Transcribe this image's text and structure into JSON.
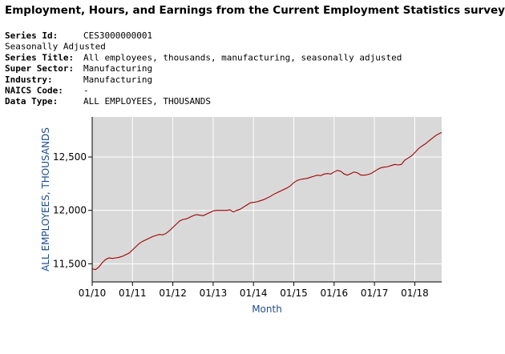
{
  "header": {
    "title": "Employment, Hours, and Earnings from the Current Employment Statistics survey (National)",
    "details": [
      {
        "label": "Series Id:",
        "value": "CES3000000001"
      },
      {
        "value": "Seasonally Adjusted"
      },
      {
        "label": "Series Title:",
        "value": "All employees, thousands, manufacturing, seasonally adjusted"
      },
      {
        "label": "Super Sector:",
        "value": "Manufacturing"
      },
      {
        "label": "Industry:",
        "value": "Manufacturing"
      },
      {
        "label": "NAICS Code:",
        "value": "-"
      },
      {
        "label": "Data Type:",
        "value": "ALL EMPLOYEES, THOUSANDS"
      }
    ]
  },
  "chart_data": {
    "type": "line",
    "x_label": "Month",
    "y_label": "ALL EMPLOYEES, THOUSANDS",
    "x": [
      "01/10",
      "02/10",
      "03/10",
      "04/10",
      "05/10",
      "06/10",
      "07/10",
      "08/10",
      "09/10",
      "10/10",
      "11/10",
      "12/10",
      "01/11",
      "02/11",
      "03/11",
      "04/11",
      "05/11",
      "06/11",
      "07/11",
      "08/11",
      "09/11",
      "10/11",
      "11/11",
      "12/11",
      "01/12",
      "02/12",
      "03/12",
      "04/12",
      "05/12",
      "06/12",
      "07/12",
      "08/12",
      "09/12",
      "10/12",
      "11/12",
      "12/12",
      "01/13",
      "02/13",
      "03/13",
      "04/13",
      "05/13",
      "06/13",
      "07/13",
      "08/13",
      "09/13",
      "10/13",
      "11/13",
      "12/13",
      "01/14",
      "02/14",
      "03/14",
      "04/14",
      "05/14",
      "06/14",
      "07/14",
      "08/14",
      "09/14",
      "10/14",
      "11/14",
      "12/14",
      "01/15",
      "02/15",
      "03/15",
      "04/15",
      "05/15",
      "06/15",
      "07/15",
      "08/15",
      "09/15",
      "10/15",
      "11/15",
      "12/15",
      "01/16",
      "02/16",
      "03/16",
      "04/16",
      "05/16",
      "06/16",
      "07/16",
      "08/16",
      "09/16",
      "10/16",
      "11/16",
      "12/16",
      "01/17",
      "02/17",
      "03/17",
      "04/17",
      "05/17",
      "06/17",
      "07/17",
      "08/17",
      "09/17",
      "10/17",
      "11/17",
      "12/17",
      "01/18",
      "02/18",
      "03/18",
      "04/18",
      "05/18",
      "06/18",
      "07/18",
      "08/18",
      "09/18"
    ],
    "series": [
      {
        "color": "#a00000",
        "values": [
          11453,
          11445,
          11470,
          11510,
          11540,
          11555,
          11550,
          11555,
          11560,
          11570,
          11585,
          11600,
          11630,
          11660,
          11690,
          11710,
          11725,
          11740,
          11755,
          11765,
          11775,
          11770,
          11785,
          11810,
          11840,
          11870,
          11900,
          11915,
          11920,
          11935,
          11950,
          11960,
          11955,
          11950,
          11965,
          11980,
          11995,
          12000,
          12000,
          12000,
          12000,
          12005,
          11985,
          12000,
          12010,
          12030,
          12050,
          12070,
          12075,
          12080,
          12090,
          12100,
          12115,
          12130,
          12150,
          12165,
          12180,
          12195,
          12210,
          12230,
          12260,
          12280,
          12290,
          12295,
          12300,
          12310,
          12320,
          12330,
          12325,
          12340,
          12345,
          12340,
          12360,
          12375,
          12365,
          12340,
          12330,
          12345,
          12360,
          12350,
          12330,
          12330,
          12335,
          12345,
          12365,
          12385,
          12400,
          12405,
          12410,
          12420,
          12430,
          12425,
          12430,
          12470,
          12490,
          12510,
          12540,
          12575,
          12600,
          12620,
          12645,
          12670,
          12695,
          12715,
          12730
        ]
      }
    ],
    "xticks": [
      "01/10",
      "01/11",
      "01/12",
      "01/13",
      "01/14",
      "01/15",
      "01/16",
      "01/17",
      "01/18"
    ],
    "ylim": [
      11330,
      12875
    ],
    "yticks": [
      {
        "value": 11500,
        "label": "11,500"
      },
      {
        "value": 12000,
        "label": "12,000"
      },
      {
        "value": 12500,
        "label": "12,500"
      }
    ],
    "grid": true,
    "background": "#d9d9d9"
  }
}
